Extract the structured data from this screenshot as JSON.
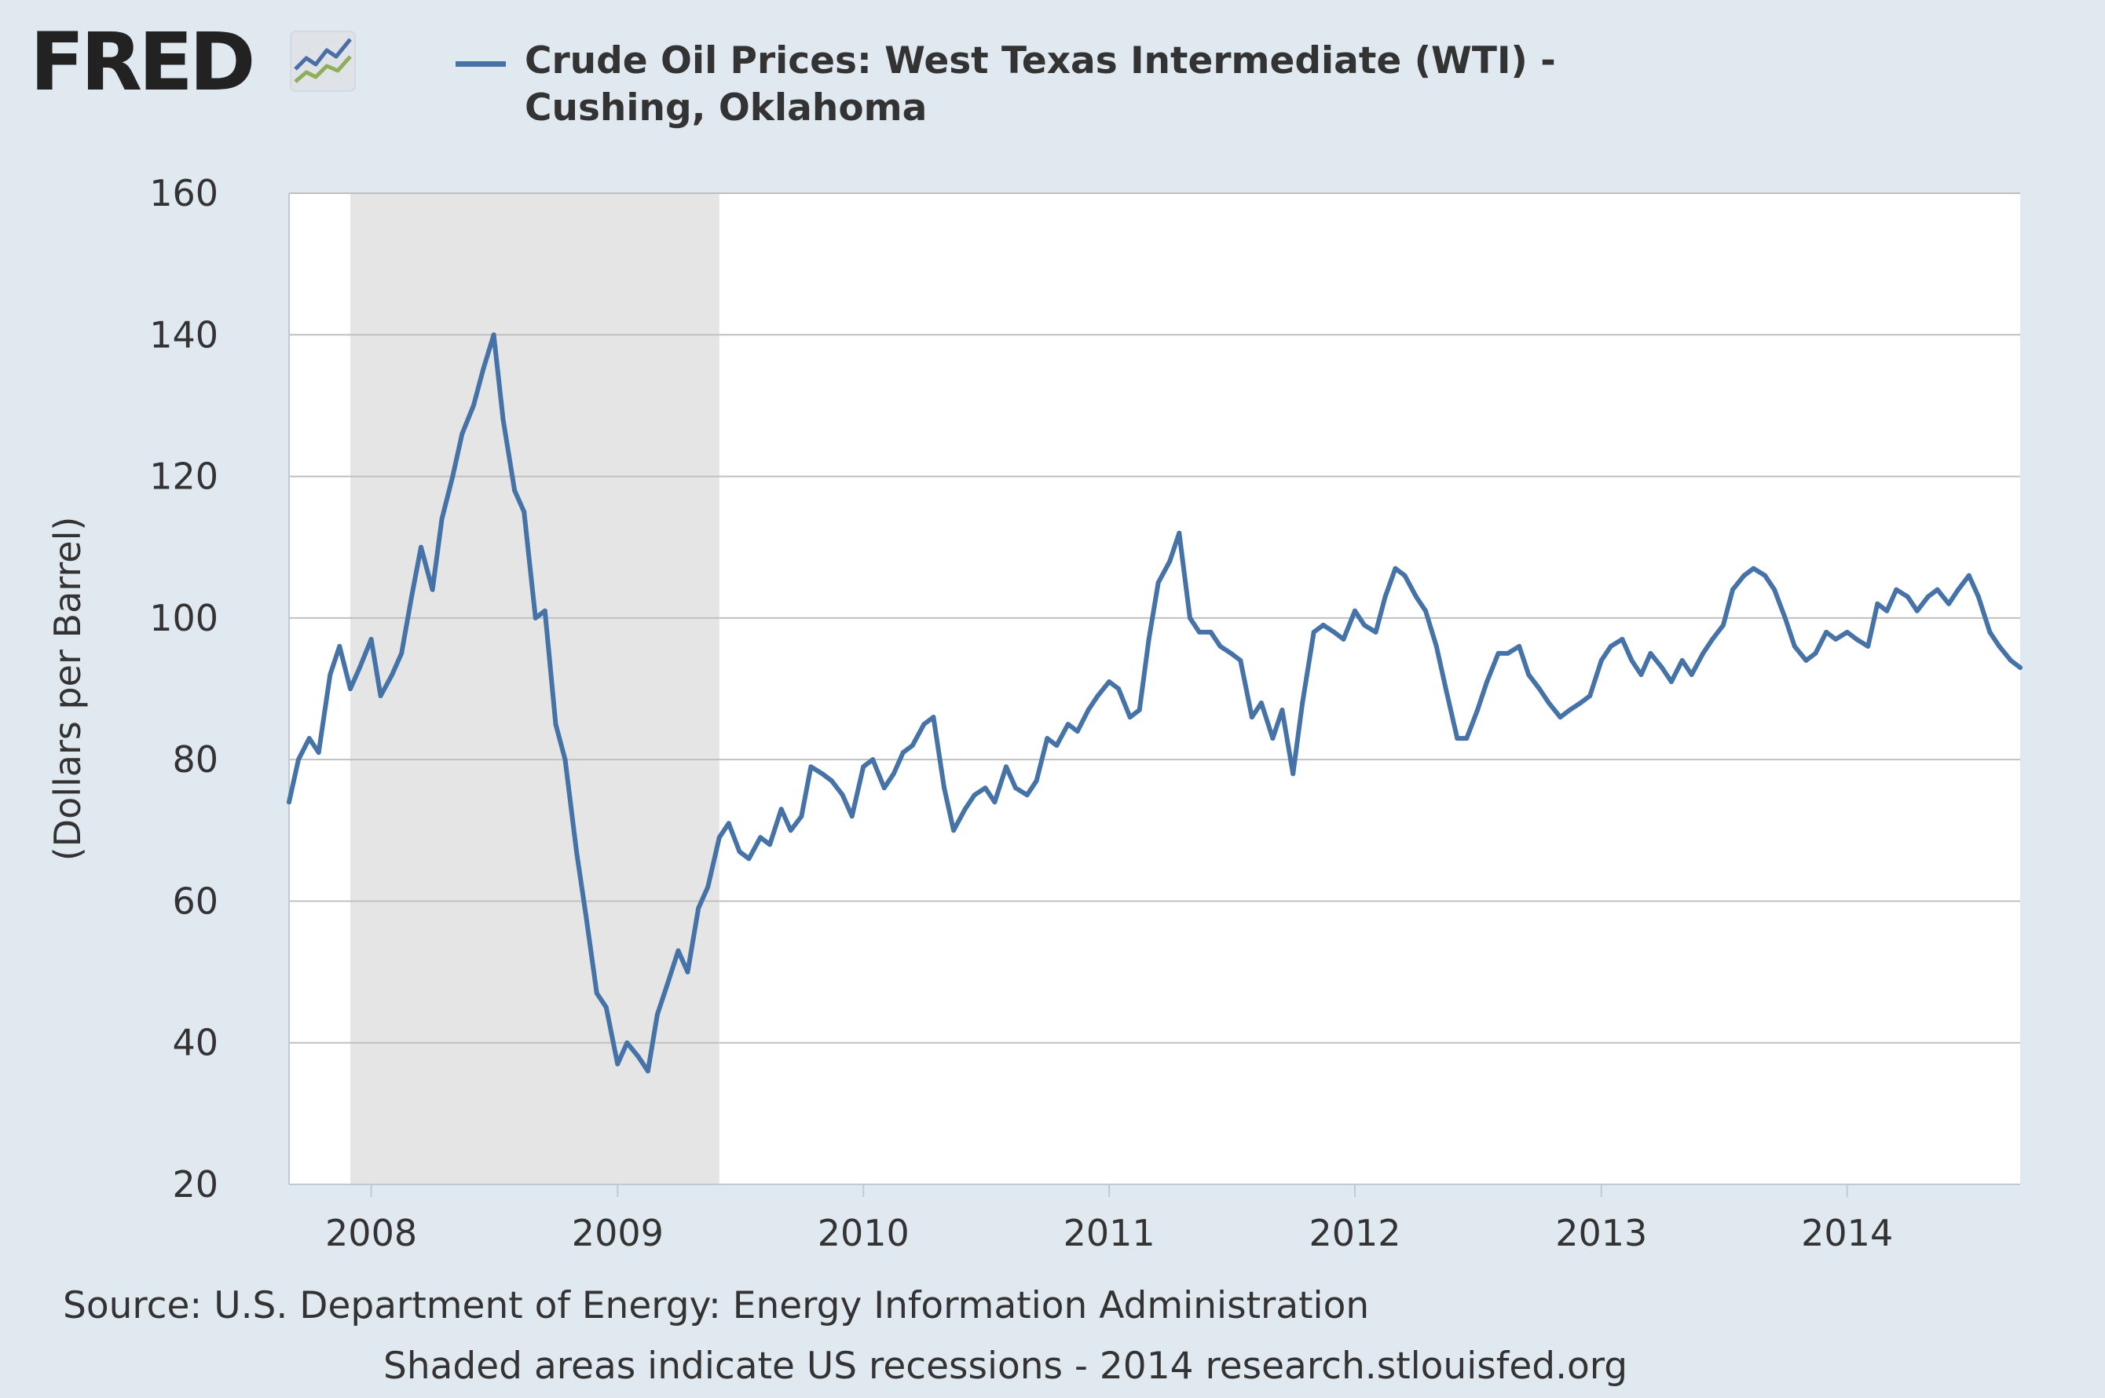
{
  "brand": {
    "logo_text": "FRED"
  },
  "footer": {
    "source": "Source: U.S. Department of Energy: Energy Information Administration",
    "note": "Shaded areas indicate US recessions - 2014 research.stlouisfed.org"
  },
  "colors": {
    "background": "#e1e9f0",
    "plot_background": "#ffffff",
    "series_line": "#4572a7",
    "recession_shade": "#e5e5e5",
    "grid": "#c0c0c0"
  },
  "chart_data": {
    "type": "line",
    "title": "Crude Oil Prices: West Texas Intermediate (WTI) - Cushing, Oklahoma",
    "xlabel": "",
    "ylabel": "(Dollars per Barrel)",
    "xlim": [
      "2007-09-01",
      "2014-09-15"
    ],
    "ylim": [
      20,
      160
    ],
    "yticks": [
      20,
      40,
      60,
      80,
      100,
      120,
      140,
      160
    ],
    "xticks": [
      {
        "date": "2008-01-01",
        "label": "2008"
      },
      {
        "date": "2009-01-01",
        "label": "2009"
      },
      {
        "date": "2010-01-01",
        "label": "2010"
      },
      {
        "date": "2011-01-01",
        "label": "2011"
      },
      {
        "date": "2012-01-01",
        "label": "2012"
      },
      {
        "date": "2013-01-01",
        "label": "2013"
      },
      {
        "date": "2014-01-01",
        "label": "2014"
      }
    ],
    "grid": "horizontal",
    "legend": "top",
    "recessions": [
      {
        "start": "2007-12-01",
        "end": "2009-06-01"
      }
    ],
    "series": [
      {
        "name": "Crude Oil Prices: West Texas Intermediate (WTI) - Cushing, Oklahoma",
        "x": [
          "2007-09-01",
          "2007-09-15",
          "2007-10-01",
          "2007-10-15",
          "2007-11-01",
          "2007-11-15",
          "2007-12-01",
          "2007-12-15",
          "2008-01-01",
          "2008-01-15",
          "2008-02-01",
          "2008-02-15",
          "2008-03-01",
          "2008-03-15",
          "2008-04-01",
          "2008-04-15",
          "2008-05-01",
          "2008-05-15",
          "2008-06-01",
          "2008-06-15",
          "2008-07-01",
          "2008-07-15",
          "2008-08-01",
          "2008-08-15",
          "2008-09-01",
          "2008-09-15",
          "2008-10-01",
          "2008-10-15",
          "2008-11-01",
          "2008-11-15",
          "2008-12-01",
          "2008-12-15",
          "2009-01-01",
          "2009-01-15",
          "2009-02-01",
          "2009-02-15",
          "2009-03-01",
          "2009-03-15",
          "2009-04-01",
          "2009-04-15",
          "2009-05-01",
          "2009-05-15",
          "2009-06-01",
          "2009-06-15",
          "2009-07-01",
          "2009-07-15",
          "2009-08-01",
          "2009-08-15",
          "2009-09-01",
          "2009-09-15",
          "2009-10-01",
          "2009-10-15",
          "2009-11-01",
          "2009-11-15",
          "2009-12-01",
          "2009-12-15",
          "2010-01-01",
          "2010-01-15",
          "2010-02-01",
          "2010-02-15",
          "2010-03-01",
          "2010-03-15",
          "2010-04-01",
          "2010-04-15",
          "2010-05-01",
          "2010-05-15",
          "2010-06-01",
          "2010-06-15",
          "2010-07-01",
          "2010-07-15",
          "2010-08-01",
          "2010-08-15",
          "2010-09-01",
          "2010-09-15",
          "2010-10-01",
          "2010-10-15",
          "2010-11-01",
          "2010-11-15",
          "2010-12-01",
          "2010-12-15",
          "2011-01-01",
          "2011-01-15",
          "2011-02-01",
          "2011-02-15",
          "2011-03-01",
          "2011-03-15",
          "2011-04-01",
          "2011-04-15",
          "2011-05-01",
          "2011-05-15",
          "2011-06-01",
          "2011-06-15",
          "2011-07-01",
          "2011-07-15",
          "2011-08-01",
          "2011-08-15",
          "2011-09-01",
          "2011-09-15",
          "2011-10-01",
          "2011-10-15",
          "2011-11-01",
          "2011-11-15",
          "2011-12-01",
          "2011-12-15",
          "2012-01-01",
          "2012-01-15",
          "2012-02-01",
          "2012-02-15",
          "2012-03-01",
          "2012-03-15",
          "2012-04-01",
          "2012-04-15",
          "2012-05-01",
          "2012-05-15",
          "2012-06-01",
          "2012-06-15",
          "2012-07-01",
          "2012-07-15",
          "2012-08-01",
          "2012-08-15",
          "2012-09-01",
          "2012-09-15",
          "2012-10-01",
          "2012-10-15",
          "2012-11-01",
          "2012-11-15",
          "2012-12-01",
          "2012-12-15",
          "2013-01-01",
          "2013-01-15",
          "2013-02-01",
          "2013-02-15",
          "2013-03-01",
          "2013-03-15",
          "2013-04-01",
          "2013-04-15",
          "2013-05-01",
          "2013-05-15",
          "2013-06-01",
          "2013-06-15",
          "2013-07-01",
          "2013-07-15",
          "2013-08-01",
          "2013-08-15",
          "2013-09-01",
          "2013-09-15",
          "2013-10-01",
          "2013-10-15",
          "2013-11-01",
          "2013-11-15",
          "2013-12-01",
          "2013-12-15",
          "2014-01-01",
          "2014-01-15",
          "2014-02-01",
          "2014-02-15",
          "2014-03-01",
          "2014-03-15",
          "2014-04-01",
          "2014-04-15",
          "2014-05-01",
          "2014-05-15",
          "2014-06-01",
          "2014-06-15",
          "2014-07-01",
          "2014-07-15",
          "2014-08-01",
          "2014-08-15",
          "2014-09-01",
          "2014-09-15"
        ],
        "y": [
          74,
          80,
          83,
          81,
          92,
          96,
          90,
          93,
          97,
          89,
          92,
          95,
          103,
          110,
          104,
          114,
          120,
          126,
          130,
          135,
          140,
          128,
          118,
          115,
          100,
          101,
          85,
          80,
          67,
          58,
          47,
          45,
          37,
          40,
          38,
          36,
          44,
          48,
          53,
          50,
          59,
          62,
          69,
          71,
          67,
          66,
          69,
          68,
          73,
          70,
          72,
          79,
          78,
          77,
          75,
          72,
          79,
          80,
          76,
          78,
          81,
          82,
          85,
          86,
          76,
          70,
          73,
          75,
          76,
          74,
          79,
          76,
          75,
          77,
          83,
          82,
          85,
          84,
          87,
          89,
          91,
          90,
          86,
          87,
          97,
          105,
          108,
          112,
          100,
          98,
          98,
          96,
          95,
          94,
          86,
          88,
          83,
          87,
          78,
          88,
          98,
          99,
          98,
          97,
          101,
          99,
          98,
          103,
          107,
          106,
          103,
          101,
          96,
          90,
          83,
          83,
          87,
          91,
          95,
          95,
          96,
          92,
          90,
          88,
          86,
          87,
          88,
          89,
          94,
          96,
          97,
          94,
          92,
          95,
          93,
          91,
          94,
          92,
          95,
          97,
          99,
          104,
          106,
          107,
          106,
          104,
          100,
          96,
          94,
          95,
          98,
          97,
          98,
          97,
          96,
          102,
          101,
          104,
          103,
          101,
          103,
          104,
          102,
          104,
          106,
          103,
          98,
          96,
          94,
          93
        ]
      }
    ]
  }
}
